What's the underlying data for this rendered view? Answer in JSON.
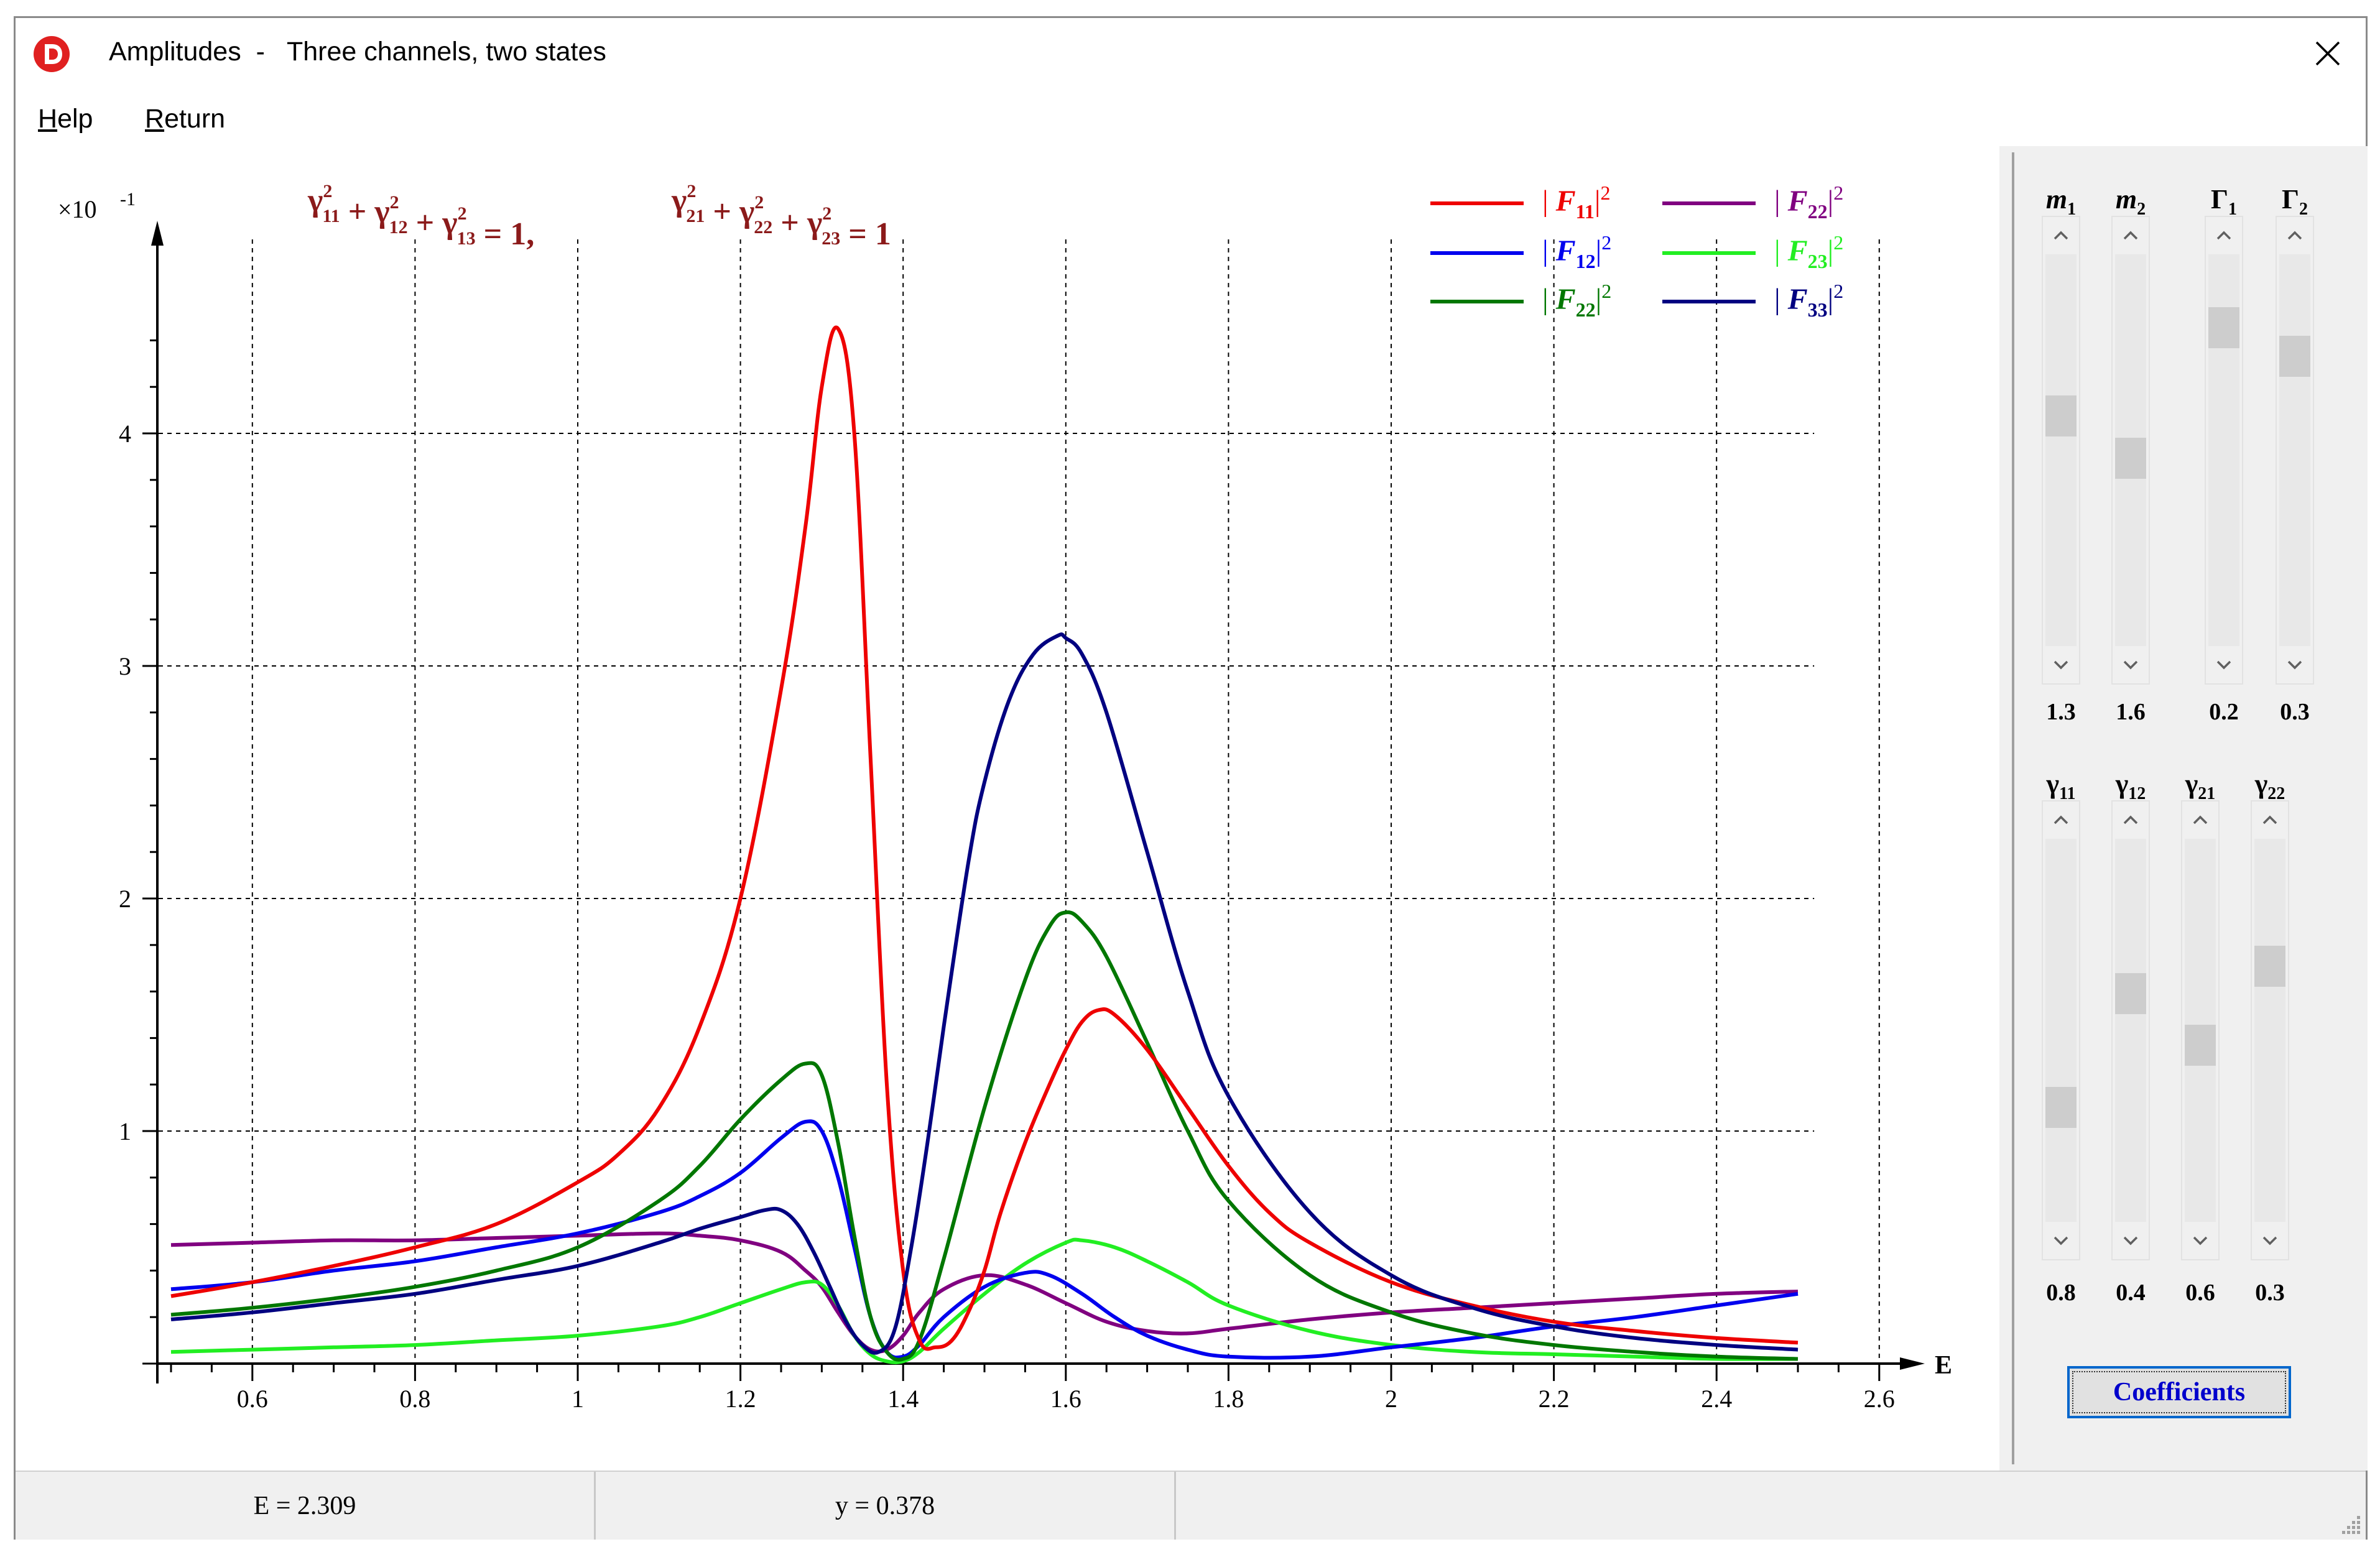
{
  "window": {
    "title": "Amplitudes  -   Three channels, two states",
    "close_glyph": "✕",
    "icon": "app-logo-icon"
  },
  "menu": {
    "items": [
      {
        "label": "Help",
        "accel": "H"
      },
      {
        "label": "Return",
        "accel": "R"
      }
    ]
  },
  "equations": {
    "left": {
      "base": "γ",
      "terms": [
        "11",
        "12",
        "13"
      ],
      "rhs": "= 1,"
    },
    "right": {
      "base": "γ",
      "terms": [
        "21",
        "22",
        "23"
      ],
      "rhs": "= 1"
    }
  },
  "chart_data": {
    "type": "line",
    "multiplier_label": "×10",
    "multiplier_exp": "-1",
    "xlabel": "E",
    "ylabel": "",
    "xlim": [
      0.5,
      2.62
    ],
    "ylim": [
      0,
      4.7
    ],
    "x_ticks": [
      "0.6",
      "0.8",
      "1",
      "1.2",
      "1.4",
      "1.6",
      "1.8",
      "2",
      "2.2",
      "2.4",
      "2.6"
    ],
    "x_tick_values": [
      0.6,
      0.8,
      1.0,
      1.2,
      1.4,
      1.6,
      1.8,
      2.0,
      2.2,
      2.4,
      2.6
    ],
    "y_ticks": [
      "1",
      "2",
      "3",
      "4"
    ],
    "y_tick_values": [
      1,
      2,
      3,
      4
    ],
    "grid": true,
    "legend_position": "top-right",
    "series": [
      {
        "name": "F",
        "sub": "11",
        "color": "#ee0000",
        "x": [
          0.5,
          0.6,
          0.7,
          0.8,
          0.9,
          1.0,
          1.05,
          1.1,
          1.15,
          1.2,
          1.25,
          1.28,
          1.3,
          1.32,
          1.34,
          1.36,
          1.38,
          1.4,
          1.42,
          1.44,
          1.46,
          1.48,
          1.5,
          1.52,
          1.55,
          1.58,
          1.6,
          1.62,
          1.64,
          1.66,
          1.7,
          1.75,
          1.8,
          1.85,
          1.9,
          2.0,
          2.1,
          2.2,
          2.3,
          2.4,
          2.5
        ],
        "y": [
          0.29,
          0.35,
          0.42,
          0.5,
          0.6,
          0.78,
          0.9,
          1.1,
          1.45,
          2.0,
          2.9,
          3.6,
          4.2,
          4.45,
          4.0,
          2.6,
          1.2,
          0.4,
          0.1,
          0.07,
          0.1,
          0.22,
          0.4,
          0.65,
          0.95,
          1.2,
          1.35,
          1.47,
          1.52,
          1.5,
          1.35,
          1.1,
          0.85,
          0.65,
          0.52,
          0.35,
          0.25,
          0.18,
          0.14,
          0.11,
          0.09
        ]
      },
      {
        "name": "F",
        "sub": "12",
        "color": "#0000ee",
        "x": [
          0.5,
          0.6,
          0.7,
          0.8,
          0.9,
          1.0,
          1.1,
          1.15,
          1.2,
          1.25,
          1.28,
          1.3,
          1.32,
          1.34,
          1.36,
          1.38,
          1.4,
          1.42,
          1.45,
          1.5,
          1.55,
          1.58,
          1.62,
          1.66,
          1.7,
          1.75,
          1.8,
          1.9,
          2.0,
          2.1,
          2.2,
          2.3,
          2.4,
          2.5
        ],
        "y": [
          0.32,
          0.35,
          0.4,
          0.44,
          0.5,
          0.56,
          0.65,
          0.72,
          0.82,
          0.97,
          1.04,
          1.0,
          0.8,
          0.5,
          0.2,
          0.05,
          0.03,
          0.08,
          0.2,
          0.33,
          0.39,
          0.38,
          0.3,
          0.2,
          0.12,
          0.06,
          0.03,
          0.03,
          0.07,
          0.11,
          0.16,
          0.2,
          0.25,
          0.3
        ]
      },
      {
        "name": "F",
        "sub": "22",
        "color": "#007700",
        "x": [
          0.5,
          0.6,
          0.7,
          0.8,
          0.9,
          1.0,
          1.1,
          1.15,
          1.2,
          1.25,
          1.28,
          1.3,
          1.32,
          1.34,
          1.36,
          1.38,
          1.4,
          1.42,
          1.45,
          1.5,
          1.55,
          1.58,
          1.6,
          1.62,
          1.65,
          1.7,
          1.75,
          1.8,
          1.9,
          2.0,
          2.1,
          2.2,
          2.3,
          2.4,
          2.5
        ],
        "y": [
          0.21,
          0.24,
          0.28,
          0.33,
          0.4,
          0.5,
          0.7,
          0.85,
          1.05,
          1.22,
          1.29,
          1.24,
          0.95,
          0.55,
          0.2,
          0.05,
          0.02,
          0.1,
          0.45,
          1.1,
          1.65,
          1.88,
          1.94,
          1.9,
          1.75,
          1.38,
          1.0,
          0.7,
          0.38,
          0.22,
          0.13,
          0.08,
          0.05,
          0.03,
          0.02
        ]
      },
      {
        "name": "F",
        "sub": "22",
        "color": "#800080",
        "x": [
          0.5,
          0.6,
          0.7,
          0.8,
          0.9,
          1.0,
          1.1,
          1.15,
          1.2,
          1.25,
          1.28,
          1.3,
          1.32,
          1.34,
          1.36,
          1.38,
          1.4,
          1.42,
          1.45,
          1.5,
          1.55,
          1.6,
          1.65,
          1.7,
          1.75,
          1.8,
          1.9,
          2.0,
          2.1,
          2.2,
          2.3,
          2.4,
          2.5
        ],
        "y": [
          0.51,
          0.52,
          0.53,
          0.53,
          0.54,
          0.55,
          0.56,
          0.55,
          0.53,
          0.48,
          0.4,
          0.33,
          0.22,
          0.12,
          0.06,
          0.06,
          0.12,
          0.22,
          0.32,
          0.38,
          0.34,
          0.26,
          0.18,
          0.14,
          0.13,
          0.15,
          0.19,
          0.22,
          0.24,
          0.26,
          0.28,
          0.3,
          0.31
        ]
      },
      {
        "name": "F",
        "sub": "23",
        "color": "#22ee22",
        "x": [
          0.5,
          0.6,
          0.7,
          0.8,
          0.9,
          1.0,
          1.1,
          1.15,
          1.2,
          1.25,
          1.28,
          1.3,
          1.32,
          1.34,
          1.36,
          1.38,
          1.4,
          1.42,
          1.45,
          1.5,
          1.55,
          1.6,
          1.62,
          1.66,
          1.7,
          1.75,
          1.8,
          1.9,
          2.0,
          2.1,
          2.2,
          2.3,
          2.4,
          2.5
        ],
        "y": [
          0.05,
          0.06,
          0.07,
          0.08,
          0.1,
          0.12,
          0.16,
          0.2,
          0.26,
          0.32,
          0.35,
          0.34,
          0.25,
          0.12,
          0.04,
          0.01,
          0.01,
          0.05,
          0.15,
          0.3,
          0.43,
          0.52,
          0.53,
          0.5,
          0.44,
          0.35,
          0.25,
          0.14,
          0.08,
          0.05,
          0.04,
          0.03,
          0.02,
          0.02
        ]
      },
      {
        "name": "F",
        "sub": "33",
        "color": "#000080",
        "x": [
          0.5,
          0.6,
          0.7,
          0.8,
          0.9,
          1.0,
          1.1,
          1.15,
          1.2,
          1.23,
          1.25,
          1.27,
          1.29,
          1.31,
          1.33,
          1.35,
          1.37,
          1.39,
          1.41,
          1.43,
          1.45,
          1.48,
          1.5,
          1.53,
          1.56,
          1.59,
          1.6,
          1.62,
          1.65,
          1.7,
          1.75,
          1.8,
          1.9,
          2.0,
          2.1,
          2.2,
          2.3,
          2.4,
          2.5
        ],
        "y": [
          0.19,
          0.22,
          0.26,
          0.3,
          0.36,
          0.42,
          0.52,
          0.58,
          0.63,
          0.66,
          0.66,
          0.6,
          0.48,
          0.33,
          0.18,
          0.08,
          0.05,
          0.15,
          0.5,
          0.95,
          1.45,
          2.15,
          2.5,
          2.85,
          3.05,
          3.13,
          3.12,
          3.05,
          2.8,
          2.2,
          1.6,
          1.15,
          0.65,
          0.38,
          0.24,
          0.16,
          0.11,
          0.08,
          0.06
        ]
      }
    ]
  },
  "sliders_top": [
    {
      "label_base": "m",
      "label_sub": "1",
      "italic": true,
      "value": "1.3",
      "level": 0.6
    },
    {
      "label_base": "m",
      "label_sub": "2",
      "italic": true,
      "value": "1.6",
      "level": 0.48
    },
    {
      "label_base": "Γ",
      "label_sub": "1",
      "italic": false,
      "value": "0.2",
      "level": 0.85
    },
    {
      "label_base": "Γ",
      "label_sub": "2",
      "italic": false,
      "value": "0.3",
      "level": 0.77
    }
  ],
  "sliders_bottom": [
    {
      "label_base": "γ",
      "label_sub": "11",
      "italic": false,
      "value": "0.8",
      "level": 0.28
    },
    {
      "label_base": "γ",
      "label_sub": "12",
      "italic": false,
      "value": "0.4",
      "level": 0.61
    },
    {
      "label_base": "γ",
      "label_sub": "21",
      "italic": false,
      "value": "0.6",
      "level": 0.46
    },
    {
      "label_base": "γ",
      "label_sub": "22",
      "italic": false,
      "value": "0.3",
      "level": 0.69
    }
  ],
  "coefficients_button": "Coefficients",
  "status": {
    "e_readout": "E = 2.309",
    "y_readout": "y = 0.378"
  }
}
